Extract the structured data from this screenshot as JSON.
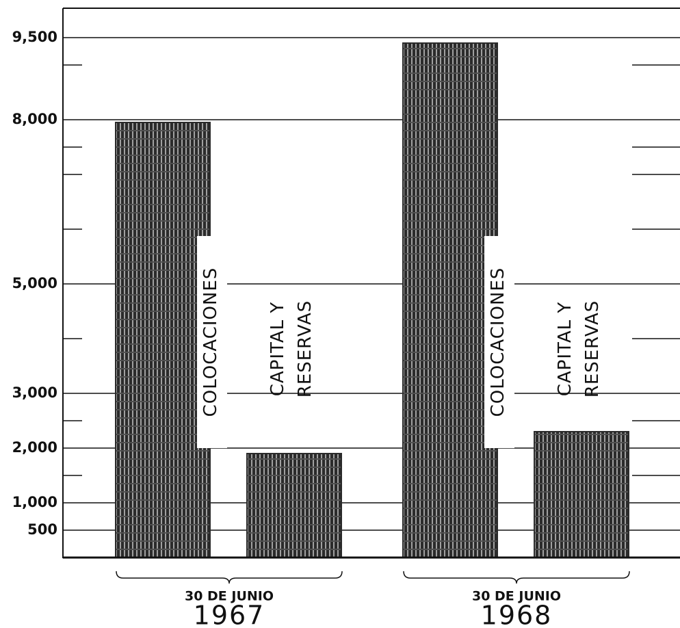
{
  "chart_data": {
    "type": "bar",
    "categories": [
      "1967",
      "1968"
    ],
    "category_subtitles": [
      "30 DE JUNIO",
      "30 DE JUNIO"
    ],
    "series": [
      {
        "name": "COLOCACIONES",
        "color": "#2b2b2b",
        "values": [
          7950,
          9400
        ]
      },
      {
        "name": "CAPITAL Y RESERVAS",
        "color": "#2b2b2b",
        "values": [
          1900,
          2300
        ]
      }
    ],
    "ylim": [
      0,
      10000
    ],
    "yticks": [
      {
        "value": 500,
        "label": "500"
      },
      {
        "value": 1000,
        "label": "1,000"
      },
      {
        "value": 2000,
        "label": "2,000"
      },
      {
        "value": 3000,
        "label": "3,000"
      },
      {
        "value": 5000,
        "label": "5,000"
      },
      {
        "value": 8000,
        "label": "8,000"
      },
      {
        "value": 9500,
        "label": "9,500"
      }
    ],
    "minor_yticks": [
      1500,
      2500,
      4000,
      6000,
      7000,
      7500,
      9000
    ],
    "grid": true
  }
}
